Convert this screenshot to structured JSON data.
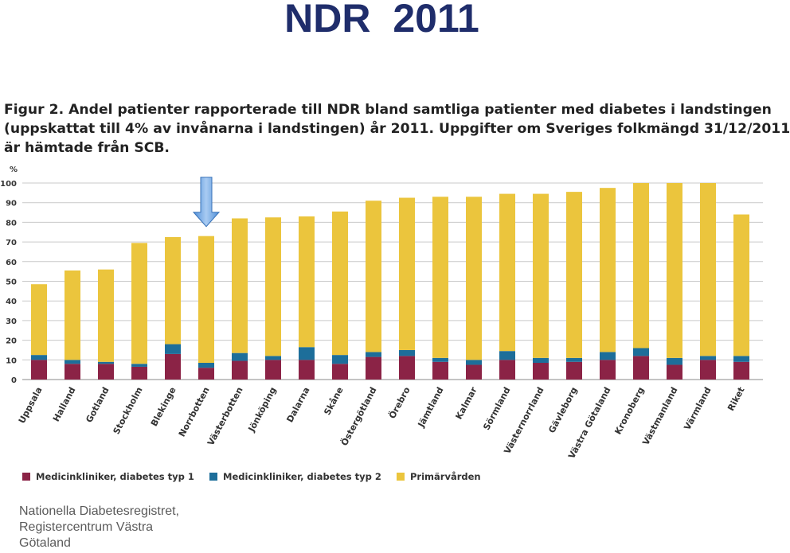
{
  "slide": {
    "title": "NDR  2011",
    "footer_lines": [
      "Nationella Diabetesregistret,",
      "Registercentrum Västra",
      "Götaland"
    ]
  },
  "figure": {
    "caption_lines": [
      "Figur 2. Andel patienter rapporterade till NDR bland samtliga patienter med diabetes i landstingen",
      "(uppskattat till 4% av invånarna i landstingen) år 2011. Uppgifter om Sveriges folkmängd 31/12/2011",
      "är hämtade från SCB."
    ],
    "highlight_marker": "down-arrow-icon",
    "highlight_category": "Norrbotten"
  },
  "chart_data": {
    "type": "bar",
    "stacked": true,
    "title": "",
    "xlabel": "",
    "ylabel": "%",
    "ylim": [
      0,
      100
    ],
    "yticks": [
      0,
      10,
      20,
      30,
      40,
      50,
      60,
      70,
      80,
      90,
      100
    ],
    "grid": true,
    "legend_position": "bottom",
    "categories": [
      "Uppsala",
      "Halland",
      "Gotland",
      "Stockholm",
      "Blekinge",
      "Norrbotten",
      "Västerbotten",
      "Jönköping",
      "Dalarna",
      "Skåne",
      "Östergötland",
      "Örebro",
      "Jämtland",
      "Kalmar",
      "Sörmland",
      "Västernorrland",
      "Gävleborg",
      "Västra Götaland",
      "Kronoberg",
      "Västmanland",
      "Värmland",
      "Riket"
    ],
    "series": [
      {
        "name": "Medicinkliniker, diabetes typ 1",
        "color": "#8b2346",
        "values": [
          10,
          8,
          8,
          6.5,
          13,
          6,
          9.5,
          10,
          10,
          8,
          11.5,
          12,
          9,
          7.5,
          10,
          8.5,
          9,
          10,
          12,
          7.5,
          10,
          9
        ]
      },
      {
        "name": "Medicinkliniker, diabetes typ 2",
        "color": "#1d6e9a",
        "values": [
          2.5,
          2,
          1,
          1.5,
          5,
          2.5,
          4,
          2,
          6.5,
          4.5,
          2.5,
          3,
          2,
          2.5,
          4.5,
          2.5,
          2,
          4,
          4,
          3.5,
          2,
          3
        ]
      },
      {
        "name": "Primärvården",
        "color": "#ebc53d",
        "values": [
          36,
          45.5,
          47,
          61.5,
          54.5,
          64.5,
          68.5,
          70.5,
          66.5,
          73,
          77,
          77.5,
          82,
          83,
          80,
          83.5,
          84.5,
          83.5,
          84,
          89,
          88,
          72
        ]
      }
    ]
  }
}
